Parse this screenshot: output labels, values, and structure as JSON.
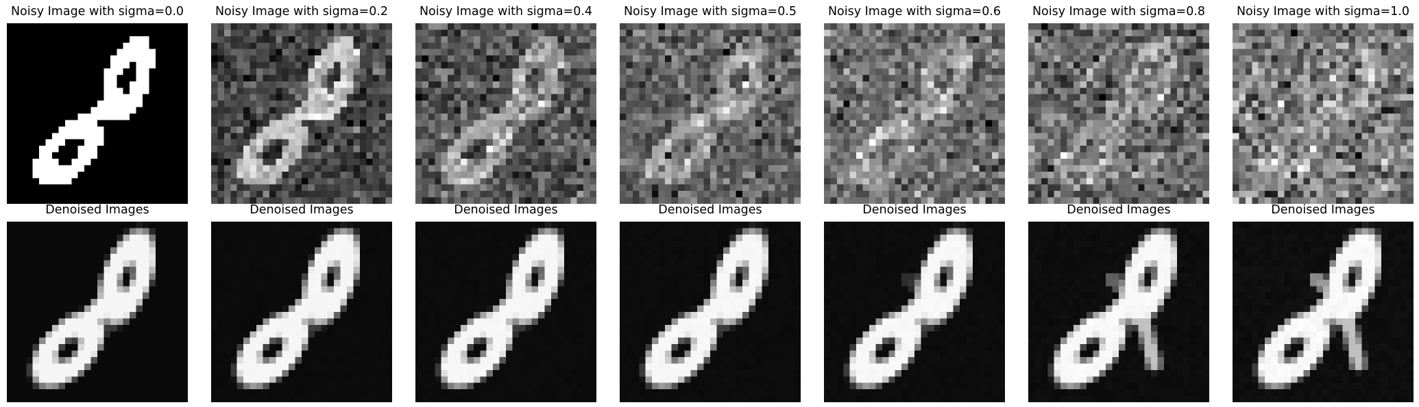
{
  "figure": {
    "rows": [
      {
        "kind": "noisy",
        "panels": [
          {
            "title": "Noisy Image with sigma=0.0",
            "sigma": 0.0
          },
          {
            "title": "Noisy Image with sigma=0.2",
            "sigma": 0.2
          },
          {
            "title": "Noisy Image with sigma=0.4",
            "sigma": 0.4
          },
          {
            "title": "Noisy Image with sigma=0.5",
            "sigma": 0.5
          },
          {
            "title": "Noisy Image with sigma=0.6",
            "sigma": 0.6
          },
          {
            "title": "Noisy Image with sigma=0.8",
            "sigma": 0.8
          },
          {
            "title": "Noisy Image with sigma=1.0",
            "sigma": 1.0
          }
        ]
      },
      {
        "kind": "denoised",
        "panels": [
          {
            "title": "Denoised Images",
            "sigma": 0.0
          },
          {
            "title": "Denoised Images",
            "sigma": 0.2
          },
          {
            "title": "Denoised Images",
            "sigma": 0.4
          },
          {
            "title": "Denoised Images",
            "sigma": 0.5
          },
          {
            "title": "Denoised Images",
            "sigma": 0.6
          },
          {
            "title": "Denoised Images",
            "sigma": 0.8
          },
          {
            "title": "Denoised Images",
            "sigma": 1.0
          }
        ]
      }
    ]
  }
}
